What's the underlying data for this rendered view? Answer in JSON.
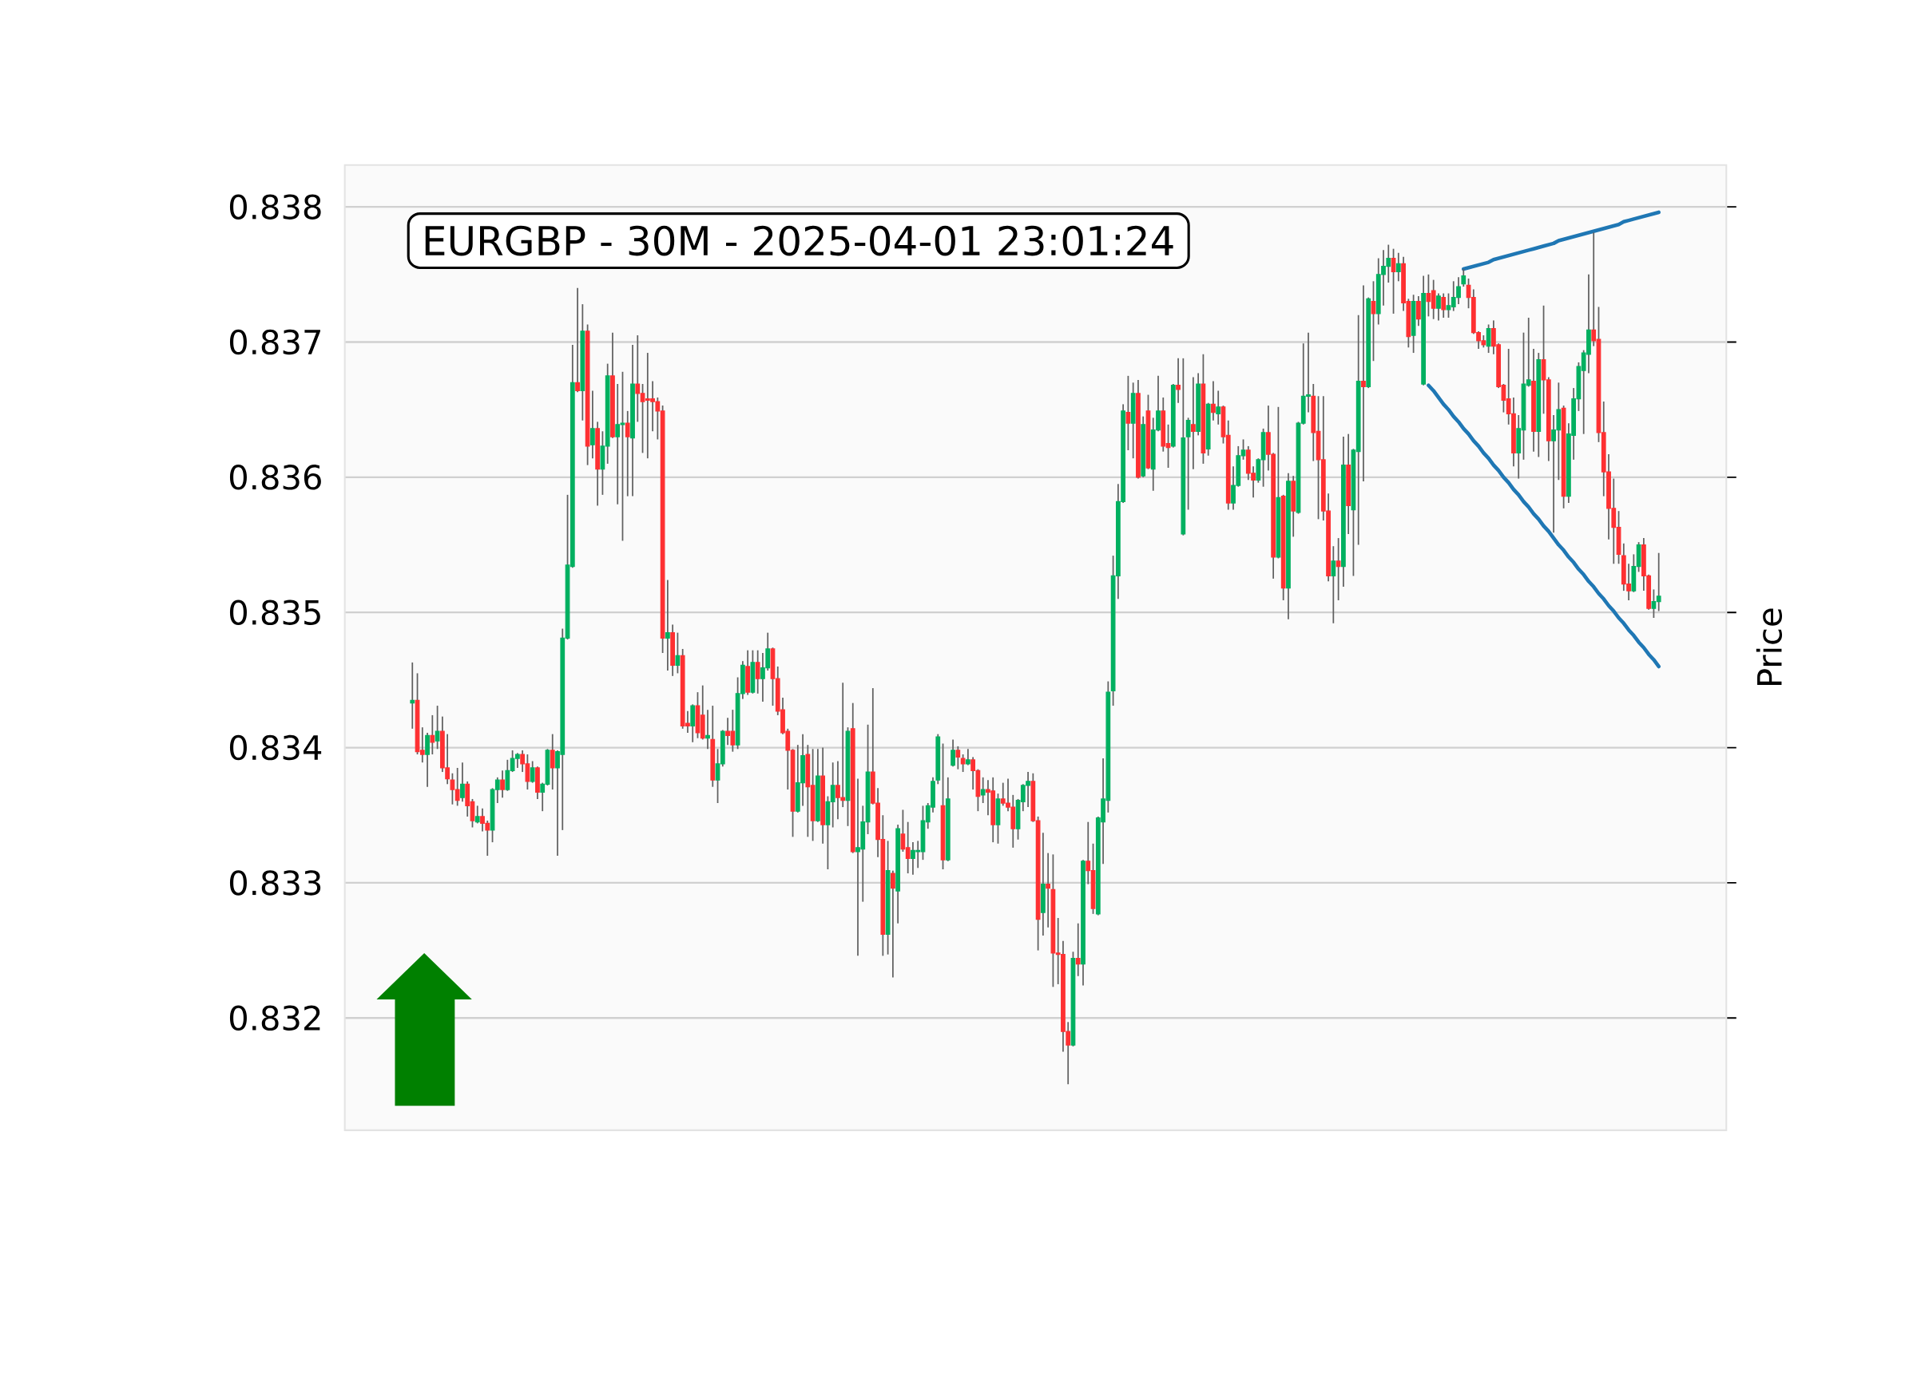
{
  "chart_data": {
    "type": "candlestick",
    "title": "EURGBP - 30M - 2025-04-01 23:01:24",
    "ylabel": "Price",
    "categories": [
      null,
      null,
      null,
      null,
      null,
      null,
      null,
      null,
      null,
      null,
      null,
      null,
      null,
      null,
      null,
      null,
      null,
      null,
      null,
      null,
      null,
      null,
      null,
      null,
      null,
      null,
      null,
      null,
      null,
      null,
      null,
      null,
      null,
      null,
      null,
      null,
      null,
      null,
      null,
      null,
      null,
      null,
      null,
      null,
      null,
      null,
      null,
      null,
      null,
      null,
      null,
      null,
      null,
      null,
      null,
      null,
      null,
      null,
      null,
      null,
      null,
      null,
      null,
      null,
      null,
      null,
      null,
      null,
      null,
      null,
      null,
      null,
      null,
      null,
      null,
      null,
      null,
      null,
      null,
      null,
      null,
      null,
      null,
      null,
      null,
      null,
      null,
      null,
      null,
      null,
      null,
      null,
      null,
      null,
      null,
      null,
      null,
      null,
      null,
      null,
      null,
      null,
      null,
      null,
      null,
      null,
      null,
      null,
      null,
      null,
      null,
      null,
      null,
      null,
      null,
      null,
      null,
      null,
      null,
      null,
      null,
      null,
      null,
      null,
      null,
      null,
      null,
      null,
      null,
      null,
      null,
      null,
      null,
      null,
      null,
      null,
      null,
      null,
      null,
      null,
      null,
      null,
      null,
      null,
      null,
      null,
      null,
      null,
      null,
      null,
      null,
      null,
      null,
      null,
      null,
      null,
      null,
      null,
      null,
      null,
      null,
      null,
      null,
      null,
      null,
      null,
      null,
      null,
      null,
      null,
      null,
      null,
      null,
      null,
      null,
      null,
      null,
      null,
      null,
      null,
      null,
      null,
      null,
      null,
      null,
      null,
      null,
      null,
      null,
      null,
      null,
      null,
      null,
      null,
      null,
      null,
      null,
      null,
      null,
      null,
      null,
      null,
      null,
      null,
      null,
      null,
      null,
      null,
      null,
      null,
      null,
      null,
      null,
      null,
      null,
      null,
      null,
      null,
      null,
      null,
      null,
      null,
      null,
      null,
      null,
      null,
      null,
      null,
      null,
      null,
      null,
      null,
      null,
      null,
      null,
      null,
      null,
      null,
      null,
      null,
      null,
      null,
      null,
      null,
      null,
      null,
      null,
      null,
      null,
      null,
      null,
      null,
      null,
      null,
      null,
      null,
      null,
      null,
      null,
      null,
      null,
      null,
      null,
      null,
      null,
      null,
      null,
      null,
      null,
      null,
      null,
      null,
      null,
      null,
      null,
      null
    ],
    "ohlc": [
      null,
      null,
      null,
      null,
      null,
      null,
      null,
      null,
      null,
      null,
      null,
      null,
      null,
      [
        0.83433,
        0.83463,
        0.83414,
        0.83435
      ],
      [
        0.83435,
        0.83455,
        0.83395,
        0.83397
      ],
      [
        0.83398,
        0.83415,
        0.83389,
        0.83395
      ],
      [
        0.83395,
        0.83411,
        0.83371,
        0.83409
      ],
      [
        0.83409,
        0.83424,
        0.83395,
        0.83404
      ],
      [
        0.83405,
        0.83431,
        0.83399,
        0.83412
      ],
      [
        0.83412,
        0.83423,
        0.83382,
        0.83385
      ],
      [
        0.83385,
        0.8341,
        0.83373,
        0.83377
      ],
      [
        0.83376,
        0.83381,
        0.83358,
        0.83369
      ],
      [
        0.83369,
        0.83385,
        0.83357,
        0.83361
      ],
      [
        0.83363,
        0.83389,
        0.8336,
        0.83373
      ],
      [
        0.83373,
        0.83375,
        0.83349,
        0.83357
      ],
      [
        0.8336,
        0.83362,
        0.83341,
        0.83346
      ],
      [
        0.83345,
        0.83357,
        0.83344,
        0.83349
      ],
      [
        0.83349,
        0.83355,
        0.83338,
        0.83344
      ],
      [
        0.83344,
        0.83346,
        0.8332,
        0.83339
      ],
      [
        0.83339,
        0.8337,
        0.8333,
        0.83369
      ],
      [
        0.83369,
        0.83378,
        0.83359,
        0.83376
      ],
      [
        0.83376,
        0.83383,
        0.83363,
        0.83369
      ],
      [
        0.83369,
        0.83391,
        0.83368,
        0.83383
      ],
      [
        0.83383,
        0.83398,
        0.83382,
        0.83392
      ],
      [
        0.83392,
        0.83396,
        0.83385,
        0.83395
      ],
      [
        0.83395,
        0.83398,
        0.83382,
        0.83388
      ],
      [
        0.83388,
        0.83395,
        0.83369,
        0.83375
      ],
      [
        0.83375,
        0.8339,
        0.83374,
        0.83385
      ],
      [
        0.83385,
        0.83386,
        0.83362,
        0.83367
      ],
      [
        0.83367,
        0.83374,
        0.83353,
        0.83373
      ],
      [
        0.83373,
        0.83399,
        0.83372,
        0.83398
      ],
      [
        0.83398,
        0.8341,
        0.83369,
        0.83385
      ],
      [
        0.83385,
        0.83398,
        0.8332,
        0.83397
      ],
      [
        0.83395,
        0.83488,
        0.83339,
        0.83481
      ],
      [
        0.83481,
        0.83587,
        0.8348,
        0.83535
      ],
      [
        0.83534,
        0.83698,
        0.83533,
        0.8367
      ],
      [
        0.8367,
        0.8374,
        0.83663,
        0.83664
      ],
      [
        0.83664,
        0.83728,
        0.83642,
        0.83708
      ],
      [
        0.83708,
        0.83713,
        0.83609,
        0.83623
      ],
      [
        0.83624,
        0.83664,
        0.83614,
        0.83636
      ],
      [
        0.83636,
        0.83641,
        0.83579,
        0.83606
      ],
      [
        0.83606,
        0.83634,
        0.83587,
        0.83623
      ],
      [
        0.83623,
        0.83684,
        0.8361,
        0.83675
      ],
      [
        0.83675,
        0.83707,
        0.83629,
        0.8363
      ],
      [
        0.8363,
        0.83669,
        0.8358,
        0.83639
      ],
      [
        0.83639,
        0.83678,
        0.83553,
        0.8364
      ],
      [
        0.8364,
        0.83649,
        0.83586,
        0.8363
      ],
      [
        0.83629,
        0.83698,
        0.83586,
        0.83669
      ],
      [
        0.83669,
        0.83705,
        0.83641,
        0.83662
      ],
      [
        0.83662,
        0.83669,
        0.83618,
        0.83656
      ],
      [
        0.83658,
        0.83692,
        0.83614,
        0.83657
      ],
      [
        0.83658,
        0.83671,
        0.83634,
        0.83656
      ],
      [
        0.83656,
        0.83659,
        0.83628,
        0.83649
      ],
      [
        0.83649,
        0.83653,
        0.8347,
        0.83481
      ],
      [
        0.83481,
        0.83524,
        0.83457,
        0.83485
      ],
      [
        0.83485,
        0.83491,
        0.83453,
        0.83461
      ],
      [
        0.83461,
        0.83485,
        0.83455,
        0.83468
      ],
      [
        0.83468,
        0.83473,
        0.83414,
        0.83416
      ],
      [
        0.83418,
        0.83427,
        0.83411,
        0.83416
      ],
      [
        0.83416,
        0.83432,
        0.83404,
        0.83431
      ],
      [
        0.83431,
        0.83441,
        0.83407,
        0.83411
      ],
      [
        0.83424,
        0.83446,
        0.83406,
        0.83407
      ],
      [
        0.83407,
        0.83428,
        0.83399,
        0.83409
      ],
      [
        0.83406,
        0.83431,
        0.83371,
        0.83376
      ],
      [
        0.83376,
        0.83399,
        0.83359,
        0.83388
      ],
      [
        0.83388,
        0.83413,
        0.83386,
        0.83412
      ],
      [
        0.83412,
        0.83422,
        0.83402,
        0.83409
      ],
      [
        0.83412,
        0.83428,
        0.83397,
        0.83402
      ],
      [
        0.83402,
        0.83452,
        0.83399,
        0.8344
      ],
      [
        0.8344,
        0.83464,
        0.83436,
        0.83461
      ],
      [
        0.8346,
        0.83472,
        0.83439,
        0.83441
      ],
      [
        0.83441,
        0.83472,
        0.8344,
        0.83463
      ],
      [
        0.83463,
        0.83472,
        0.8344,
        0.83451
      ],
      [
        0.83451,
        0.8347,
        0.83434,
        0.83459
      ],
      [
        0.83459,
        0.83485,
        0.83457,
        0.83473
      ],
      [
        0.83473,
        0.83474,
        0.83431,
        0.83451
      ],
      [
        0.83451,
        0.8346,
        0.83424,
        0.83427
      ],
      [
        0.83428,
        0.83437,
        0.8341,
        0.83411
      ],
      [
        0.83412,
        0.83414,
        0.83369,
        0.83398
      ],
      [
        0.83398,
        0.83399,
        0.83334,
        0.83353
      ],
      [
        0.83353,
        0.83402,
        0.83352,
        0.83374
      ],
      [
        0.83374,
        0.8341,
        0.83357,
        0.83394
      ],
      [
        0.83395,
        0.83402,
        0.83334,
        0.83371
      ],
      [
        0.83372,
        0.83399,
        0.83331,
        0.83346
      ],
      [
        0.83346,
        0.83399,
        0.83345,
        0.83379
      ],
      [
        0.83379,
        0.834,
        0.83329,
        0.83343
      ],
      [
        0.83343,
        0.83364,
        0.8331,
        0.8336
      ],
      [
        0.8336,
        0.83389,
        0.83341,
        0.83372
      ],
      [
        0.83372,
        0.8339,
        0.83347,
        0.83363
      ],
      [
        0.83363,
        0.83448,
        0.83356,
        0.83361
      ],
      [
        0.83361,
        0.83415,
        0.83342,
        0.83412
      ],
      [
        0.83414,
        0.83433,
        0.83322,
        0.83323
      ],
      [
        0.83323,
        0.83377,
        0.83246,
        0.83326
      ],
      [
        0.83325,
        0.83357,
        0.83286,
        0.83345
      ],
      [
        0.83345,
        0.83417,
        0.83336,
        0.83382
      ],
      [
        0.83382,
        0.83444,
        0.83358,
        0.83359
      ],
      [
        0.83359,
        0.8337,
        0.83319,
        0.83332
      ],
      [
        0.83332,
        0.8335,
        0.83246,
        0.83262
      ],
      [
        0.83262,
        0.83331,
        0.83247,
        0.83309
      ],
      [
        0.83307,
        0.83309,
        0.8323,
        0.83296
      ],
      [
        0.83294,
        0.83343,
        0.8327,
        0.8334
      ],
      [
        0.83336,
        0.83354,
        0.83323,
        0.83325
      ],
      [
        0.83326,
        0.83345,
        0.83307,
        0.83318
      ],
      [
        0.83318,
        0.8333,
        0.83306,
        0.83324
      ],
      [
        0.83323,
        0.83331,
        0.83311,
        0.83324
      ],
      [
        0.83323,
        0.83357,
        0.83317,
        0.83346
      ],
      [
        0.83345,
        0.83359,
        0.8334,
        0.83357
      ],
      [
        0.83356,
        0.83378,
        0.83352,
        0.83375
      ],
      [
        0.83376,
        0.8341,
        0.83373,
        0.83408
      ],
      [
        0.83357,
        0.83403,
        0.8331,
        0.83317
      ],
      [
        0.83317,
        0.83378,
        0.83316,
        0.83362
      ],
      [
        0.83387,
        0.83406,
        0.83386,
        0.83398
      ],
      [
        0.83398,
        0.83401,
        0.83384,
        0.83393
      ],
      [
        0.83392,
        0.83395,
        0.83382,
        0.83388
      ],
      [
        0.83388,
        0.83399,
        0.83387,
        0.83391
      ],
      [
        0.83391,
        0.83393,
        0.83369,
        0.83383
      ],
      [
        0.83383,
        0.83384,
        0.83353,
        0.83364
      ],
      [
        0.83365,
        0.83378,
        0.83359,
        0.83369
      ],
      [
        0.83369,
        0.83376,
        0.8335,
        0.83367
      ],
      [
        0.83368,
        0.83378,
        0.8333,
        0.83343
      ],
      [
        0.83343,
        0.83366,
        0.83329,
        0.83362
      ],
      [
        0.83362,
        0.83374,
        0.83357,
        0.83359
      ],
      [
        0.83359,
        0.83377,
        0.83353,
        0.83356
      ],
      [
        0.83356,
        0.83365,
        0.83326,
        0.8334
      ],
      [
        0.8334,
        0.83362,
        0.83332,
        0.83361
      ],
      [
        0.8336,
        0.83373,
        0.83353,
        0.83372
      ],
      [
        0.83372,
        0.83382,
        0.83356,
        0.83375
      ],
      [
        0.83375,
        0.83381,
        0.83345,
        0.83346
      ],
      [
        0.83346,
        0.83349,
        0.8325,
        0.83273
      ],
      [
        0.83278,
        0.83337,
        0.83261,
        0.83299
      ],
      [
        0.83299,
        0.83322,
        0.83267,
        0.83296
      ],
      [
        0.83295,
        0.83321,
        0.83223,
        0.83248
      ],
      [
        0.83248,
        0.83274,
        0.83225,
        0.83247
      ],
      [
        0.83247,
        0.83257,
        0.83175,
        0.8319
      ],
      [
        0.8319,
        0.83197,
        0.83151,
        0.8318
      ],
      [
        0.8318,
        0.83249,
        0.83179,
        0.83244
      ],
      [
        0.83244,
        0.8327,
        0.83231,
        0.8324
      ],
      [
        0.8324,
        0.83317,
        0.83224,
        0.83316
      ],
      [
        0.83316,
        0.83345,
        0.83299,
        0.83309
      ],
      [
        0.83309,
        0.83329,
        0.83277,
        0.83281
      ],
      [
        0.83277,
        0.83349,
        0.83276,
        0.83348
      ],
      [
        0.83345,
        0.83392,
        0.83314,
        0.83362
      ],
      [
        0.83361,
        0.83449,
        0.83352,
        0.83441
      ],
      [
        0.83442,
        0.83542,
        0.83431,
        0.83527
      ],
      [
        0.83527,
        0.83595,
        0.8351,
        0.83582
      ],
      [
        0.83582,
        0.83654,
        0.83581,
        0.83649
      ],
      [
        0.83648,
        0.83675,
        0.8362,
        0.8364
      ],
      [
        0.8364,
        0.8367,
        0.83614,
        0.83662
      ],
      [
        0.83662,
        0.83672,
        0.83599,
        0.836
      ],
      [
        0.83601,
        0.83645,
        0.836,
        0.83639
      ],
      [
        0.83649,
        0.83661,
        0.83606,
        0.83607
      ],
      [
        0.83606,
        0.83644,
        0.8359,
        0.83635
      ],
      [
        0.83635,
        0.83675,
        0.83634,
        0.83649
      ],
      [
        0.83649,
        0.83659,
        0.83619,
        0.83623
      ],
      [
        0.83625,
        0.83639,
        0.83607,
        0.83622
      ],
      [
        0.83623,
        0.83669,
        0.83622,
        0.83668
      ],
      [
        0.83668,
        0.83688,
        0.83655,
        0.83665
      ],
      [
        0.83558,
        0.83688,
        0.83557,
        0.83629
      ],
      [
        0.8363,
        0.83644,
        0.83576,
        0.83642
      ],
      [
        0.83639,
        0.83674,
        0.83606,
        0.83634
      ],
      [
        0.83634,
        0.83677,
        0.83631,
        0.83669
      ],
      [
        0.83669,
        0.83691,
        0.8361,
        0.83618
      ],
      [
        0.83621,
        0.83655,
        0.83616,
        0.83654
      ],
      [
        0.83654,
        0.83671,
        0.83642,
        0.83648
      ],
      [
        0.83647,
        0.83664,
        0.83639,
        0.83652
      ],
      [
        0.83652,
        0.83653,
        0.83625,
        0.8363
      ],
      [
        0.83631,
        0.83642,
        0.83576,
        0.83581
      ],
      [
        0.83581,
        0.83608,
        0.83576,
        0.83594
      ],
      [
        0.83594,
        0.83623,
        0.83593,
        0.83616
      ],
      [
        0.83616,
        0.83628,
        0.83613,
        0.8362
      ],
      [
        0.8362,
        0.83623,
        0.83598,
        0.83603
      ],
      [
        0.83603,
        0.83608,
        0.83585,
        0.83598
      ],
      [
        0.83598,
        0.83614,
        0.83596,
        0.83613
      ],
      [
        0.83613,
        0.83636,
        0.83593,
        0.83633
      ],
      [
        0.83633,
        0.83653,
        0.83605,
        0.83617
      ],
      [
        0.83617,
        0.83618,
        0.83525,
        0.83541
      ],
      [
        0.83541,
        0.83652,
        0.8354,
        0.83585
      ],
      [
        0.83586,
        0.83587,
        0.83509,
        0.83518
      ],
      [
        0.83518,
        0.83603,
        0.83495,
        0.83597
      ],
      [
        0.83597,
        0.83601,
        0.83556,
        0.83575
      ],
      [
        0.83574,
        0.83641,
        0.83573,
        0.8364
      ],
      [
        0.8364,
        0.83699,
        0.83639,
        0.8366
      ],
      [
        0.8366,
        0.83707,
        0.83648,
        0.83661
      ],
      [
        0.8366,
        0.83669,
        0.83612,
        0.83633
      ],
      [
        0.83634,
        0.8366,
        0.83569,
        0.83613
      ],
      [
        0.83613,
        0.8366,
        0.83568,
        0.83575
      ],
      [
        0.83575,
        0.83588,
        0.83523,
        0.83527
      ],
      [
        0.83527,
        0.83549,
        0.83492,
        0.83538
      ],
      [
        0.83538,
        0.83555,
        0.83509,
        0.83534
      ],
      [
        0.83534,
        0.8363,
        0.83519,
        0.83609
      ],
      [
        0.83609,
        0.83632,
        0.83558,
        0.83579
      ],
      [
        0.83576,
        0.83621,
        0.83527,
        0.8362
      ],
      [
        0.83619,
        0.8372,
        0.8355,
        0.83671
      ],
      [
        0.83671,
        0.83742,
        0.83597,
        0.83667
      ],
      [
        0.83667,
        0.83733,
        0.83666,
        0.83732
      ],
      [
        0.8373,
        0.83745,
        0.83686,
        0.83721
      ],
      [
        0.83721,
        0.83762,
        0.83713,
        0.8375
      ],
      [
        0.8375,
        0.83768,
        0.83727,
        0.83756
      ],
      [
        0.83756,
        0.83772,
        0.83744,
        0.83762
      ],
      [
        0.83762,
        0.83769,
        0.83721,
        0.83752
      ],
      [
        0.83752,
        0.83766,
        0.83745,
        0.83758
      ],
      [
        0.83758,
        0.83763,
        0.83723,
        0.83729
      ],
      [
        0.8373,
        0.83732,
        0.83696,
        0.83704
      ],
      [
        0.83705,
        0.83735,
        0.83692,
        0.8373
      ],
      [
        0.8373,
        0.83734,
        0.83712,
        0.83717
      ],
      [
        0.83669,
        0.83749,
        0.83668,
        0.83736
      ],
      [
        0.83736,
        0.8375,
        0.83719,
        0.8373
      ],
      [
        0.83738,
        0.83746,
        0.83717,
        0.83725
      ],
      [
        0.83725,
        0.83736,
        0.83716,
        0.83734
      ],
      [
        0.83733,
        0.83736,
        0.83718,
        0.83724
      ],
      [
        0.83724,
        0.83736,
        0.83718,
        0.83727
      ],
      [
        0.83726,
        0.83745,
        0.83723,
        0.83733
      ],
      [
        0.83733,
        0.83748,
        0.83728,
        0.83741
      ],
      [
        0.83743,
        0.83754,
        0.83741,
        0.83749
      ],
      [
        0.83742,
        0.83747,
        0.83725,
        0.83733
      ],
      [
        0.83733,
        0.83739,
        0.83706,
        0.83707
      ],
      [
        0.83707,
        0.83708,
        0.83695,
        0.83701
      ],
      [
        0.83701,
        0.83705,
        0.83696,
        0.83698
      ],
      [
        0.83697,
        0.83713,
        0.83692,
        0.8371
      ],
      [
        0.8371,
        0.83716,
        0.83691,
        0.83697
      ],
      [
        0.83698,
        0.83699,
        0.83666,
        0.83667
      ],
      [
        0.83668,
        0.83669,
        0.83648,
        0.83657
      ],
      [
        0.83658,
        0.83695,
        0.83639,
        0.83647
      ],
      [
        0.83647,
        0.83659,
        0.83608,
        0.83618
      ],
      [
        0.83618,
        0.83646,
        0.83599,
        0.83636
      ],
      [
        0.83635,
        0.83707,
        0.83613,
        0.83669
      ],
      [
        0.83668,
        0.83718,
        0.83667,
        0.83672
      ],
      [
        0.83671,
        0.83695,
        0.83619,
        0.83634
      ],
      [
        0.83634,
        0.83692,
        0.83615,
        0.83687
      ],
      [
        0.83687,
        0.83727,
        0.83647,
        0.83672
      ],
      [
        0.83672,
        0.83674,
        0.83612,
        0.83627
      ],
      [
        0.83627,
        0.83646,
        0.83559,
        0.83635
      ],
      [
        0.83635,
        0.8367,
        0.83598,
        0.8365
      ],
      [
        0.83651,
        0.83653,
        0.83577,
        0.83586
      ],
      [
        0.83586,
        0.8364,
        0.83581,
        0.83632
      ],
      [
        0.83631,
        0.83666,
        0.83613,
        0.83658
      ],
      [
        0.83658,
        0.83685,
        0.83649,
        0.83682
      ],
      [
        0.83679,
        0.83694,
        0.83632,
        0.83692
      ],
      [
        0.83691,
        0.8375,
        0.83677,
        0.83709
      ],
      [
        0.83709,
        0.83781,
        0.83697,
        0.83701
      ],
      [
        0.83702,
        0.83726,
        0.83626,
        0.83633
      ],
      [
        0.83633,
        0.83656,
        0.83586,
        0.83604
      ],
      [
        0.83604,
        0.83617,
        0.83554,
        0.83577
      ],
      [
        0.83577,
        0.83599,
        0.83536,
        0.83563
      ],
      [
        0.83563,
        0.83575,
        0.83536,
        0.83543
      ],
      [
        0.83542,
        0.83551,
        0.83516,
        0.83521
      ],
      [
        0.83521,
        0.83536,
        0.83509,
        0.83516
      ],
      [
        0.83516,
        0.83543,
        0.83515,
        0.83534
      ],
      [
        0.83534,
        0.83552,
        0.8353,
        0.8355
      ],
      [
        0.8355,
        0.83555,
        0.83516,
        0.83527
      ],
      [
        0.83527,
        0.83528,
        0.83502,
        0.83503
      ],
      [
        0.83503,
        0.83517,
        0.83496,
        0.83508
      ],
      [
        0.83508,
        0.83544,
        0.83501,
        0.83512
      ],
      null,
      null,
      null,
      null,
      null,
      null,
      null,
      null,
      null,
      null,
      null,
      null,
      null
    ],
    "colors": [
      null,
      null,
      null,
      null,
      null,
      null,
      null,
      null,
      null,
      null,
      null,
      null,
      null,
      "#00b060",
      "#fe3032",
      "#fe3032",
      "#00b060",
      "#fe3032",
      "#00b060",
      "#fe3032",
      "#fe3032",
      "#fe3032",
      "#fe3032",
      "#00b060",
      "#fe3032",
      "#fe3032",
      "#00b060",
      "#fe3032",
      "#fe3032",
      "#00b060",
      "#00b060",
      "#fe3032",
      "#00b060",
      "#00b060",
      "#00b060",
      "#fe3032",
      "#fe3032",
      "#00b060",
      "#fe3032",
      "#00b060",
      "#00b060",
      "#fe3032",
      "#00b060",
      "#00b060",
      "#00b060",
      "#00b060",
      "#fe3032",
      "#00b060",
      "#fe3032",
      "#00b060",
      "#fe3032",
      "#00b060",
      "#00b060",
      "#fe3032",
      "#00b060",
      "#00b060",
      "#fe3032",
      "#00b060",
      "#fe3032",
      "#fe3032",
      "#fe3032",
      "#fe3032",
      "#fe3032",
      "#fe3032",
      "#00b060",
      "#fe3032",
      "#00b060",
      "#fe3032",
      "#fe3032",
      "#00b060",
      "#fe3032",
      "#fe3032",
      "#00b060",
      "#fe3032",
      "#00b060",
      "#00b060",
      "#fe3032",
      "#fe3032",
      "#00b060",
      "#00b060",
      "#fe3032",
      "#00b060",
      "#fe3032",
      "#00b060",
      "#00b060",
      "#fe3032",
      "#fe3032",
      "#fe3032",
      "#fe3032",
      "#fe3032",
      "#00b060",
      "#00b060",
      "#fe3032",
      "#fe3032",
      "#00b060",
      "#fe3032",
      "#00b060",
      "#00b060",
      "#fe3032",
      "#fe3032",
      "#00b060",
      "#fe3032",
      "#00b060",
      "#00b060",
      "#00b060",
      "#fe3032",
      "#fe3032",
      "#fe3032",
      "#00b060",
      "#fe3032",
      "#00b060",
      "#fe3032",
      "#fe3032",
      "#00b060",
      "#00b060",
      "#00b060",
      "#00b060",
      "#00b060",
      "#00b060",
      "#fe3032",
      "#00b060",
      "#00b060",
      "#fe3032",
      "#fe3032",
      "#00b060",
      "#fe3032",
      "#fe3032",
      "#00b060",
      "#fe3032",
      "#fe3032",
      "#00b060",
      "#fe3032",
      "#fe3032",
      "#fe3032",
      "#00b060",
      "#00b060",
      "#00b060",
      "#fe3032",
      "#fe3032",
      "#00b060",
      "#fe3032",
      "#fe3032",
      "#fe3032",
      "#fe3032",
      "#fe3032",
      "#00b060",
      "#fe3032",
      "#00b060",
      "#fe3032",
      "#fe3032",
      "#00b060",
      "#00b060",
      "#00b060",
      "#00b060",
      "#00b060",
      "#00b060",
      "#fe3032",
      "#00b060",
      "#fe3032",
      "#00b060",
      "#fe3032",
      "#00b060",
      "#00b060",
      "#fe3032",
      "#fe3032",
      "#00b060",
      "#fe3032",
      "#00b060",
      "#00b060",
      "#fe3032",
      "#00b060",
      "#fe3032",
      "#00b060",
      "#fe3032",
      "#00b060",
      "#fe3032",
      "#fe3032",
      "#00b060",
      "#00b060",
      "#00b060",
      "#fe3032",
      "#fe3032",
      "#00b060",
      "#00b060",
      "#fe3032",
      "#fe3032",
      "#00b060",
      "#fe3032",
      "#00b060",
      "#fe3032",
      "#00b060",
      "#00b060",
      "#00b060",
      "#fe3032",
      "#fe3032",
      "#fe3032",
      "#fe3032",
      "#00b060",
      "#fe3032",
      "#00b060",
      "#fe3032",
      "#00b060",
      "#00b060",
      "#fe3032",
      "#00b060",
      "#fe3032",
      "#00b060",
      "#00b060",
      "#00b060",
      "#fe3032",
      "#00b060",
      "#fe3032",
      "#fe3032",
      "#00b060",
      "#fe3032",
      "#00b060",
      "#fe3032",
      "#fe3032",
      "#00b060",
      "#fe3032",
      "#00b060",
      "#00b060",
      "#00b060",
      "#00b060",
      "#fe3032",
      "#fe3032",
      "#fe3032",
      "#fe3032",
      "#00b060",
      "#fe3032",
      "#fe3032",
      "#fe3032",
      "#fe3032",
      "#fe3032",
      "#00b060",
      "#00b060",
      "#00b060",
      "#fe3032",
      "#00b060",
      "#fe3032",
      "#fe3032",
      "#00b060",
      "#00b060",
      "#fe3032",
      "#00b060",
      "#00b060",
      "#00b060",
      "#00b060",
      "#00b060",
      "#fe3032",
      "#fe3032",
      "#fe3032",
      "#fe3032",
      "#fe3032",
      "#fe3032",
      "#fe3032",
      "#fe3032",
      "#00b060",
      "#00b060",
      "#fe3032",
      "#fe3032",
      "#00b060",
      "#00b060",
      null,
      null,
      null,
      null,
      null,
      null,
      null,
      null,
      null,
      null,
      null,
      null,
      null
    ],
    "series": [
      {
        "type": "line",
        "color": "#1f77b4",
        "values": [
          null,
          null,
          null,
          null,
          null,
          null,
          null,
          null,
          null,
          null,
          null,
          null,
          null,
          null,
          null,
          null,
          null,
          null,
          null,
          null,
          null,
          null,
          null,
          null,
          null,
          null,
          null,
          null,
          null,
          null,
          null,
          null,
          null,
          null,
          null,
          null,
          null,
          null,
          null,
          null,
          null,
          null,
          null,
          null,
          null,
          null,
          null,
          null,
          null,
          null,
          null,
          null,
          null,
          null,
          null,
          null,
          null,
          null,
          null,
          null,
          null,
          null,
          null,
          null,
          null,
          null,
          null,
          null,
          null,
          null,
          null,
          null,
          null,
          null,
          null,
          null,
          null,
          null,
          null,
          null,
          null,
          null,
          null,
          null,
          null,
          null,
          null,
          null,
          null,
          null,
          null,
          null,
          null,
          null,
          null,
          null,
          null,
          null,
          null,
          null,
          null,
          null,
          null,
          null,
          null,
          null,
          null,
          null,
          null,
          null,
          null,
          null,
          null,
          null,
          null,
          null,
          null,
          null,
          null,
          null,
          null,
          null,
          null,
          null,
          null,
          null,
          null,
          null,
          null,
          null,
          null,
          null,
          null,
          null,
          null,
          null,
          null,
          null,
          null,
          null,
          null,
          null,
          null,
          null,
          null,
          null,
          null,
          null,
          null,
          null,
          null,
          null,
          null,
          null,
          null,
          null,
          null,
          null,
          null,
          null,
          null,
          null,
          null,
          null,
          null,
          null,
          null,
          null,
          null,
          null,
          null,
          null,
          null,
          null,
          null,
          null,
          null,
          null,
          null,
          null,
          null,
          null,
          null,
          null,
          null,
          null,
          null,
          null,
          null,
          null,
          null,
          null,
          null,
          null,
          null,
          null,
          null,
          null,
          null,
          null,
          null,
          null,
          null,
          null,
          null,
          null,
          null,
          null,
          null,
          null,
          null,
          null,
          null,
          null,
          null,
          null,
          null,
          null,
          null,
          null,
          null,
          null,
          null,
          0.83754,
          0.83755,
          0.83756,
          0.83757,
          0.83758,
          0.83759,
          0.83761,
          0.83762,
          0.83763,
          0.83764,
          0.83765,
          0.83766,
          0.83767,
          0.83768,
          0.83769,
          0.8377,
          0.83771,
          0.83772,
          0.83773,
          0.83775,
          0.83776,
          0.83777,
          0.83778,
          0.83779,
          0.8378,
          0.83781,
          0.83782,
          0.83783,
          0.83784,
          0.83785,
          0.83786,
          0.83787,
          0.83789,
          0.8379,
          0.83791,
          0.83792,
          0.83793,
          0.83794,
          0.83795,
          0.83796,
          null,
          null,
          null,
          null,
          null,
          null,
          null,
          null,
          null,
          null,
          null,
          null,
          null
        ]
      },
      {
        "type": "line",
        "color": "#1f77b4",
        "values": [
          null,
          null,
          null,
          null,
          null,
          null,
          null,
          null,
          null,
          null,
          null,
          null,
          null,
          null,
          null,
          null,
          null,
          null,
          null,
          null,
          null,
          null,
          null,
          null,
          null,
          null,
          null,
          null,
          null,
          null,
          null,
          null,
          null,
          null,
          null,
          null,
          null,
          null,
          null,
          null,
          null,
          null,
          null,
          null,
          null,
          null,
          null,
          null,
          null,
          null,
          null,
          null,
          null,
          null,
          null,
          null,
          null,
          null,
          null,
          null,
          null,
          null,
          null,
          null,
          null,
          null,
          null,
          null,
          null,
          null,
          null,
          null,
          null,
          null,
          null,
          null,
          null,
          null,
          null,
          null,
          null,
          null,
          null,
          null,
          null,
          null,
          null,
          null,
          null,
          null,
          null,
          null,
          null,
          null,
          null,
          null,
          null,
          null,
          null,
          null,
          null,
          null,
          null,
          null,
          null,
          null,
          null,
          null,
          null,
          null,
          null,
          null,
          null,
          null,
          null,
          null,
          null,
          null,
          null,
          null,
          null,
          null,
          null,
          null,
          null,
          null,
          null,
          null,
          null,
          null,
          null,
          null,
          null,
          null,
          null,
          null,
          null,
          null,
          null,
          null,
          null,
          null,
          null,
          null,
          null,
          null,
          null,
          null,
          null,
          null,
          null,
          null,
          null,
          null,
          null,
          null,
          null,
          null,
          null,
          null,
          null,
          null,
          null,
          null,
          null,
          null,
          null,
          null,
          null,
          null,
          null,
          null,
          null,
          null,
          null,
          null,
          null,
          null,
          null,
          null,
          null,
          null,
          null,
          null,
          null,
          null,
          null,
          null,
          null,
          null,
          null,
          null,
          null,
          null,
          null,
          null,
          null,
          null,
          null,
          null,
          null,
          null,
          null,
          null,
          null,
          null,
          null,
          null,
          null,
          null,
          null,
          null,
          null,
          null,
          null,
          null,
          0.83668,
          0.83664,
          0.83659,
          0.83654,
          0.8365,
          0.83645,
          0.83641,
          0.83636,
          0.83632,
          0.83627,
          0.83623,
          0.83618,
          0.83614,
          0.83609,
          0.83605,
          0.836,
          0.83596,
          0.83591,
          0.83587,
          0.83582,
          0.83578,
          0.83573,
          0.83569,
          0.83564,
          0.8356,
          0.83555,
          0.8355,
          0.83546,
          0.83541,
          0.83537,
          0.83532,
          0.83528,
          0.83523,
          0.83519,
          0.83514,
          0.8351,
          0.83505,
          0.83501,
          0.83496,
          0.83492,
          0.83487,
          0.83483,
          0.83478,
          0.83474,
          0.83469,
          0.83465,
          0.8346,
          null,
          null,
          null,
          null,
          null,
          null,
          null,
          null,
          null,
          null,
          null,
          null,
          null
        ]
      }
    ],
    "ylim": [
      0.83117,
      0.83831
    ],
    "yticks": [
      0.832,
      0.833,
      0.834,
      0.835,
      0.836,
      0.837,
      0.838
    ],
    "grid": "y",
    "tick_labels": "y"
  }
}
